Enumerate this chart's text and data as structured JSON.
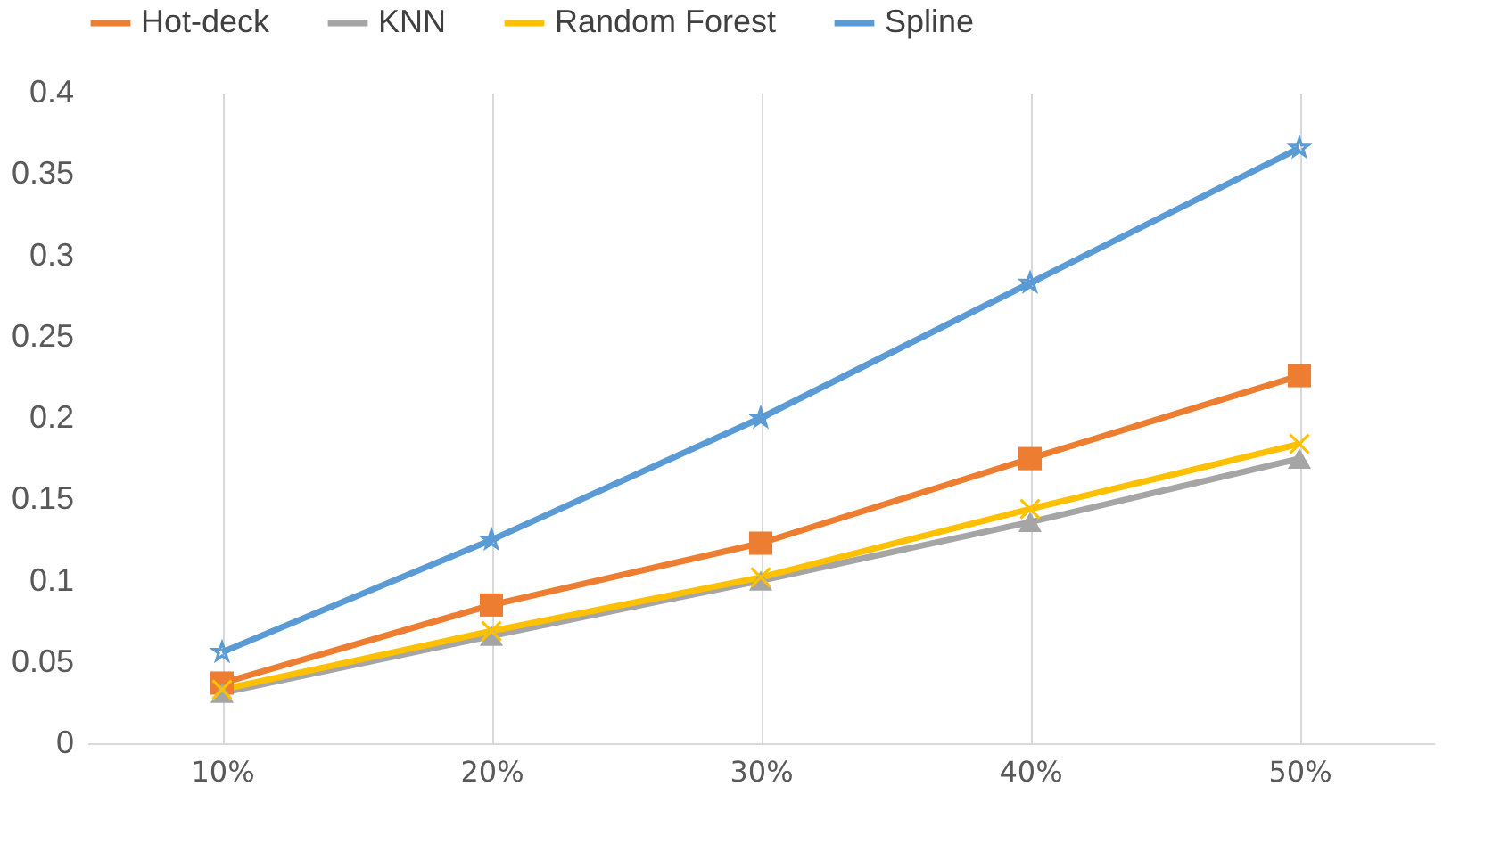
{
  "chart_data": {
    "type": "line",
    "categories": [
      "10%",
      "20%",
      "30%",
      "40%",
      "50%"
    ],
    "series": [
      {
        "name": "Hot-deck",
        "color": "#ed7d31",
        "marker": "square",
        "values": [
          0.037,
          0.085,
          0.123,
          0.175,
          0.226
        ]
      },
      {
        "name": "KNN",
        "color": "#a5a5a5",
        "marker": "triangle",
        "values": [
          0.031,
          0.066,
          0.1,
          0.136,
          0.175
        ]
      },
      {
        "name": "Random Forest",
        "color": "#ffc000",
        "marker": "cross",
        "values": [
          0.033,
          0.069,
          0.102,
          0.144,
          0.184
        ]
      },
      {
        "name": "Spline",
        "color": "#5b9bd5",
        "marker": "star",
        "values": [
          0.056,
          0.125,
          0.2,
          0.283,
          0.366
        ]
      }
    ],
    "ylim": [
      0,
      0.4
    ],
    "yticks": [
      0,
      0.05,
      0.1,
      0.15,
      0.2,
      0.25,
      0.3,
      0.35,
      0.4
    ],
    "grid": "x",
    "legend": "top",
    "line_style": "solid"
  }
}
